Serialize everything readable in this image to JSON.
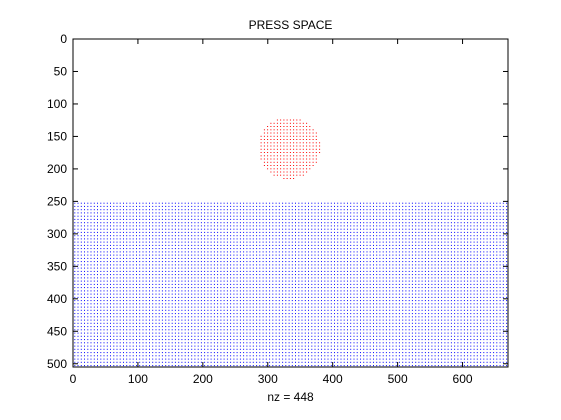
{
  "chart_data": {
    "type": "scatter",
    "title": "PRESS SPACE",
    "xlabel": "nz = 448",
    "ylabel": "",
    "xlim": [
      0,
      670
    ],
    "ylim": [
      0,
      505
    ],
    "y_reversed": true,
    "xticks": [
      0,
      100,
      200,
      300,
      400,
      500,
      600
    ],
    "yticks": [
      0,
      50,
      100,
      150,
      200,
      250,
      300,
      350,
      400,
      450,
      500
    ],
    "marker": "dot",
    "grid": false,
    "series": [
      {
        "kind": "circle-region",
        "color": "#ff0000",
        "center_x": 332,
        "center_y": 167,
        "radius": 48
      },
      {
        "kind": "rectangle-region",
        "color": "#0000ff",
        "x_range": [
          0,
          670
        ],
        "y_range": [
          252,
          505
        ]
      }
    ]
  }
}
